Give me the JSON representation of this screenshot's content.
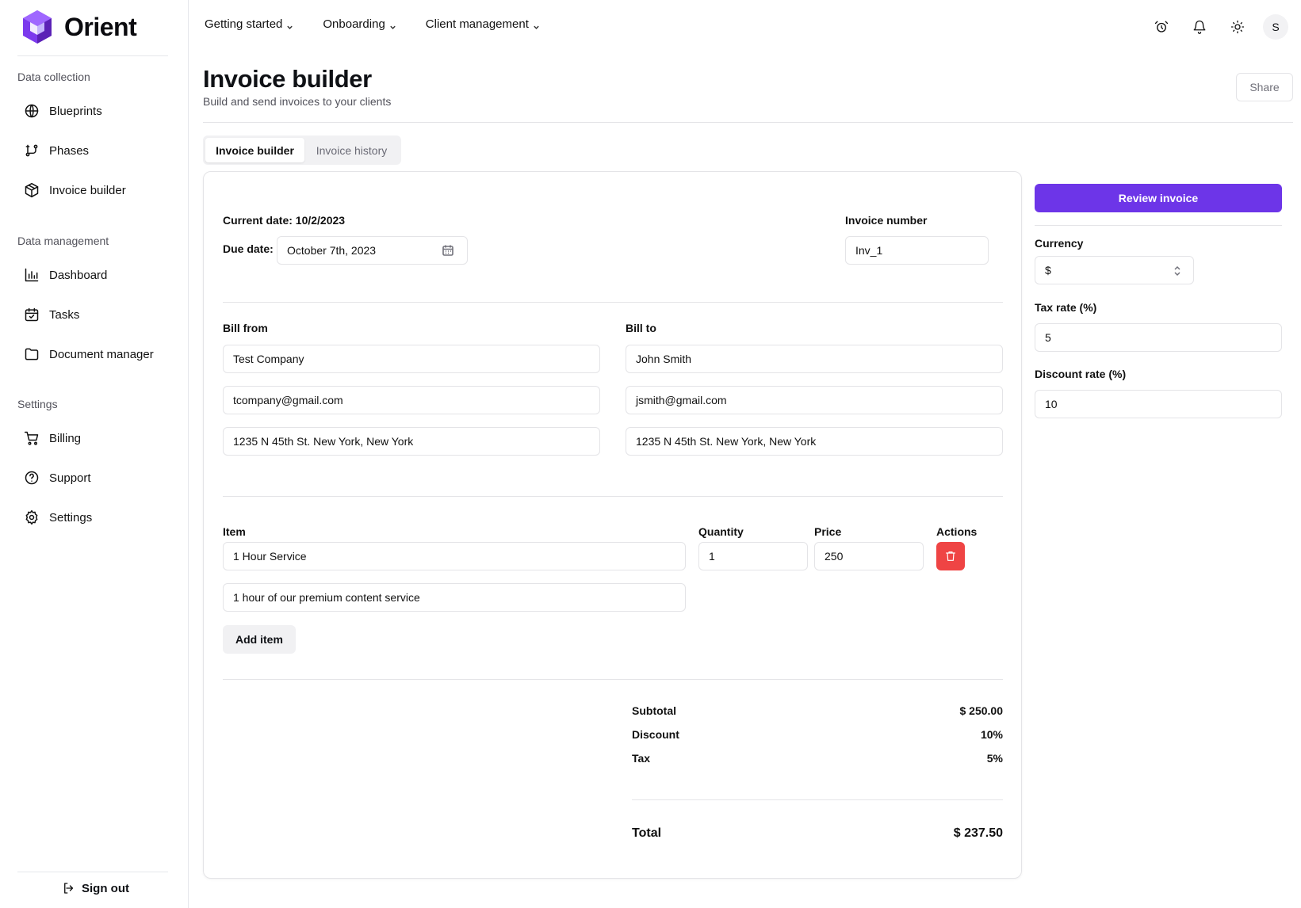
{
  "brand": {
    "name": "Orient",
    "color": "#6d35e8"
  },
  "sidebar": {
    "sections": [
      {
        "title": "Data collection",
        "items": [
          {
            "label": "Blueprints",
            "icon": "globe-icon"
          },
          {
            "label": "Phases",
            "icon": "git-branch-icon"
          },
          {
            "label": "Invoice builder",
            "icon": "package-icon"
          }
        ]
      },
      {
        "title": "Data management",
        "items": [
          {
            "label": "Dashboard",
            "icon": "bar-chart-icon"
          },
          {
            "label": "Tasks",
            "icon": "calendar-check-icon"
          },
          {
            "label": "Document manager",
            "icon": "folder-icon"
          }
        ]
      },
      {
        "title": "Settings",
        "items": [
          {
            "label": "Billing",
            "icon": "cart-icon"
          },
          {
            "label": "Support",
            "icon": "help-circle-icon"
          },
          {
            "label": "Settings",
            "icon": "gear-icon"
          }
        ]
      }
    ],
    "sign_out": "Sign out"
  },
  "topnav": {
    "items": [
      {
        "label": "Getting started"
      },
      {
        "label": "Onboarding"
      },
      {
        "label": "Client management"
      }
    ],
    "icons": [
      "alarm-clock-icon",
      "bell-icon",
      "sun-icon"
    ],
    "avatar_initial": "S"
  },
  "header": {
    "title": "Invoice builder",
    "subtitle": "Build and send invoices to your clients",
    "share_label": "Share"
  },
  "tabs": [
    {
      "label": "Invoice builder",
      "active": true
    },
    {
      "label": "Invoice history",
      "active": false
    }
  ],
  "invoice": {
    "current_date_label": "Current date: 10/2/2023",
    "due_date_label": "Due date:",
    "due_date_value": "October 7th, 2023",
    "invoice_number_label": "Invoice number",
    "invoice_number_value": "Inv_1",
    "bill_from": {
      "label": "Bill from",
      "name": "Test Company",
      "email": "tcompany@gmail.com",
      "address": "1235 N 45th St. New York, New York"
    },
    "bill_to": {
      "label": "Bill to",
      "name": "John Smith",
      "email": "jsmith@gmail.com",
      "address": "1235 N 45th St. New York, New York"
    },
    "items_header": {
      "item": "Item",
      "quantity": "Quantity",
      "price": "Price",
      "actions": "Actions"
    },
    "items": [
      {
        "name": "1 Hour Service",
        "description": "1 hour of our premium content service",
        "quantity": "1",
        "price": "250"
      }
    ],
    "add_item_label": "Add item",
    "summary": {
      "subtotal_label": "Subtotal",
      "subtotal_value": "$ 250.00",
      "discount_label": "Discount",
      "discount_value": "10%",
      "tax_label": "Tax",
      "tax_value": "5%",
      "total_label": "Total",
      "total_value": "$ 237.50"
    }
  },
  "settings_panel": {
    "review_label": "Review invoice",
    "currency_label": "Currency",
    "currency_value": "$",
    "tax_rate_label": "Tax rate (%)",
    "tax_rate_value": "5",
    "discount_rate_label": "Discount rate (%)",
    "discount_rate_value": "10"
  },
  "colors": {
    "accent": "#6d35e8",
    "danger": "#ef4444",
    "border": "#e4e4e7",
    "muted": "#52525b"
  }
}
